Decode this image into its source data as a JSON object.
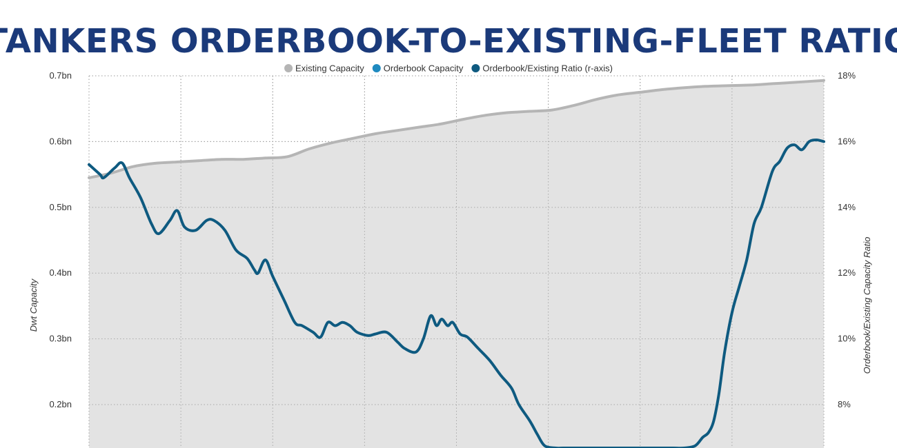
{
  "chart_data": {
    "type": "line",
    "title": "TANKERS ORDERBOOK-TO-EXISTING-FLEET RATIO",
    "legend": [
      {
        "name": "Existing Capacity",
        "color": "#b5b5b5"
      },
      {
        "name": "Orderbook Capacity",
        "color": "#1f8ac0"
      },
      {
        "name": "Orderbook/Existing Ratio (r-axis)",
        "color": "#0e5a80"
      }
    ],
    "legend_position": "top-center",
    "ylabel": "Dwt Capacity",
    "ylabel_right": "Orderbook/Existing Capacity Ratio",
    "y_left": {
      "ticks": [
        "0.2bn",
        "0.3bn",
        "0.4bn",
        "0.5bn",
        "0.6bn",
        "0.7bn"
      ],
      "tick_values": [
        0.2,
        0.3,
        0.4,
        0.5,
        0.6,
        0.7
      ],
      "range": [
        0.134,
        0.7
      ]
    },
    "y_right": {
      "ticks": [
        "8%",
        "10%",
        "12%",
        "14%",
        "16%",
        "18%"
      ],
      "tick_values": [
        8,
        10,
        12,
        14,
        16,
        18
      ],
      "range": [
        6.68,
        18
      ]
    },
    "x_range": [
      0,
      100
    ],
    "grid": {
      "vertical": true,
      "horizontal": true,
      "style": "dotted"
    },
    "series": [
      {
        "name": "Existing Capacity",
        "axis": "left",
        "x": [
          0,
          3,
          6,
          9,
          12,
          15,
          18,
          21,
          24,
          27,
          30,
          33,
          36,
          39,
          42,
          45,
          48,
          51,
          54,
          57,
          60,
          63,
          66,
          69,
          72,
          75,
          78,
          81,
          84,
          87,
          90,
          93,
          96,
          100
        ],
        "values": [
          0.545,
          0.552,
          0.562,
          0.567,
          0.569,
          0.571,
          0.573,
          0.573,
          0.575,
          0.577,
          0.589,
          0.598,
          0.605,
          0.612,
          0.617,
          0.622,
          0.627,
          0.634,
          0.64,
          0.644,
          0.646,
          0.648,
          0.655,
          0.664,
          0.671,
          0.675,
          0.679,
          0.682,
          0.684,
          0.685,
          0.686,
          0.688,
          0.69,
          0.693
        ]
      },
      {
        "name": "Orderbook/Existing Ratio (r-axis)",
        "axis": "right",
        "x": [
          0,
          1.5,
          2,
          3.5,
          4.5,
          5.5,
          7,
          8.5,
          9.5,
          11,
          12,
          13,
          14.5,
          16,
          17,
          18.5,
          20,
          21.5,
          22.5,
          23,
          24,
          25,
          26.5,
          28,
          29,
          30.5,
          31.5,
          32.5,
          33.5,
          34.5,
          35.5,
          36.5,
          38,
          39,
          40.5,
          42,
          43,
          44.5,
          45.5,
          46.5,
          47.3,
          48,
          48.8,
          49.5,
          50.5,
          51.5,
          53,
          54.5,
          56,
          57.5,
          58.5,
          60,
          61,
          62,
          63.5,
          64.5,
          66,
          67.5,
          69,
          70.5,
          72,
          73.5,
          75,
          76.5,
          78,
          79.5,
          81,
          82.5,
          83.5,
          84.3,
          85,
          85.7,
          86.5,
          87.5,
          88.5,
          89.5,
          90.5,
          91.5,
          93,
          94,
          95,
          96,
          97,
          98,
          99,
          100
        ],
        "values": [
          15.3,
          15.0,
          14.9,
          15.2,
          15.35,
          14.9,
          14.3,
          13.5,
          13.2,
          13.6,
          13.9,
          13.4,
          13.3,
          13.6,
          13.6,
          13.3,
          12.7,
          12.45,
          12.1,
          12.0,
          12.4,
          11.9,
          11.2,
          10.5,
          10.4,
          10.2,
          10.05,
          10.5,
          10.4,
          10.5,
          10.4,
          10.2,
          10.1,
          10.15,
          10.2,
          9.9,
          9.7,
          9.6,
          10.0,
          10.7,
          10.4,
          10.6,
          10.4,
          10.5,
          10.15,
          10.05,
          9.7,
          9.35,
          8.9,
          8.5,
          8.0,
          7.5,
          7.1,
          6.75,
          6.68,
          6.68,
          6.68,
          6.68,
          6.68,
          6.68,
          6.68,
          6.68,
          6.68,
          6.68,
          6.68,
          6.68,
          6.68,
          6.75,
          7.0,
          7.15,
          7.5,
          8.3,
          9.6,
          10.8,
          11.6,
          12.4,
          13.5,
          14.0,
          15.1,
          15.4,
          15.8,
          15.9,
          15.75,
          16.0,
          16.05,
          16.0
        ]
      }
    ]
  }
}
